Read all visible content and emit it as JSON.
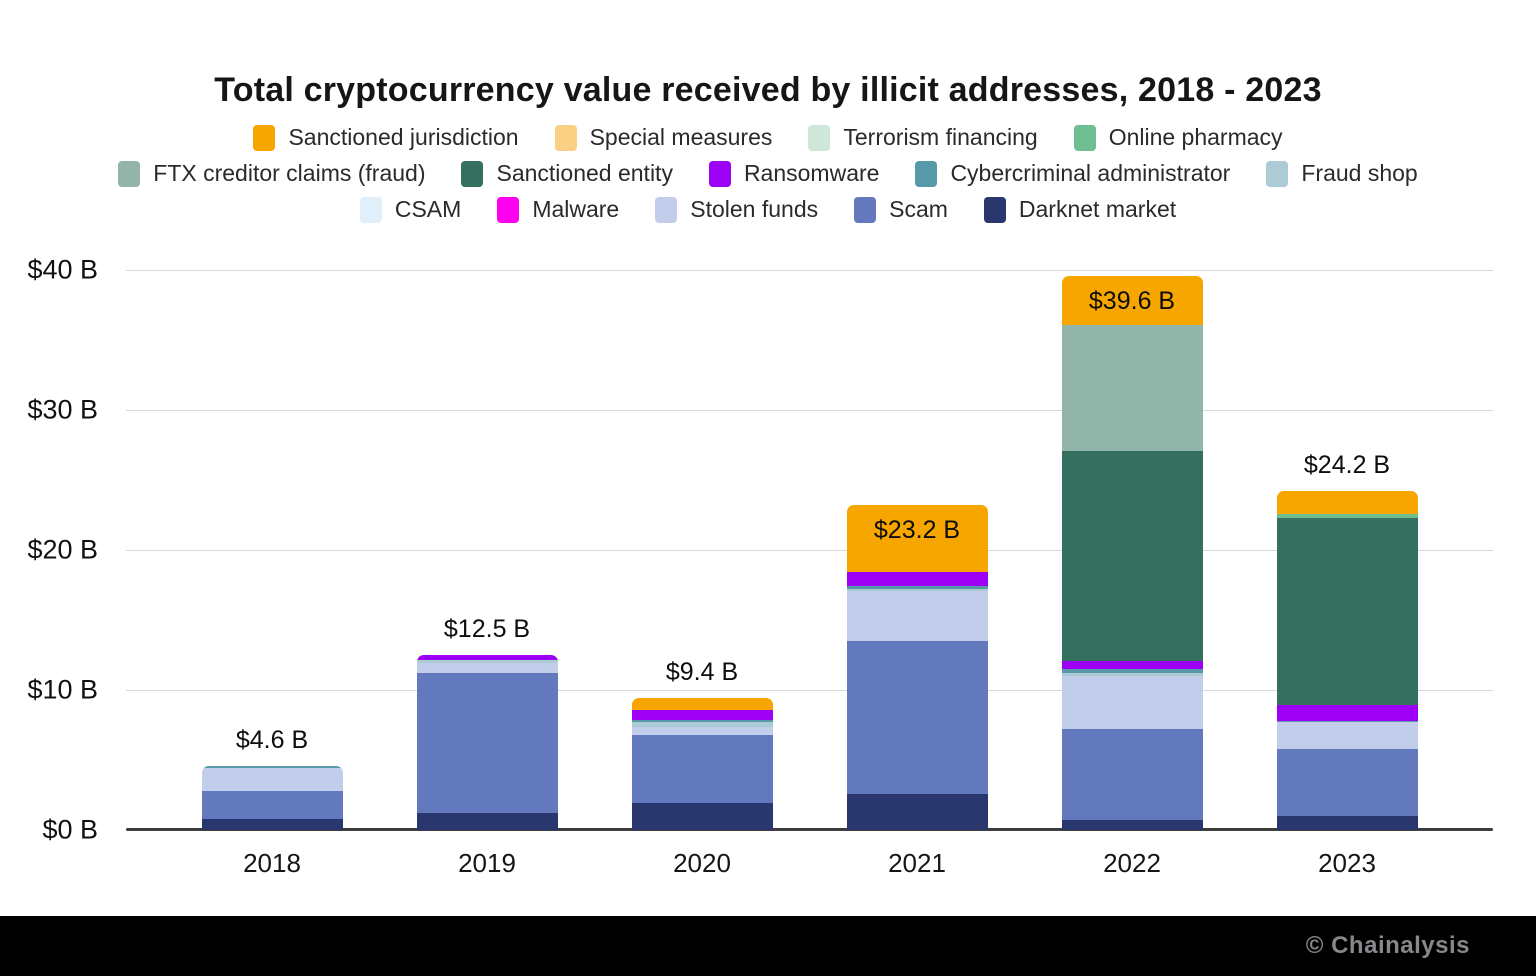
{
  "title": "Total cryptocurrency value received by illicit addresses, 2018 - 2023",
  "footer": {
    "credit": "© Chainalysis"
  },
  "colors": {
    "axis_line": "#3d3d3d",
    "gridline": "#d8d8d8",
    "footer_background": "#000000",
    "footer_text": "#87878c"
  },
  "chart_data": {
    "type": "bar",
    "stacked": true,
    "title": "Total cryptocurrency value received by illicit addresses, 2018 - 2023",
    "unit": "USD billions",
    "categories": [
      "2018",
      "2019",
      "2020",
      "2021",
      "2022",
      "2023"
    ],
    "totals": [
      4.6,
      12.5,
      9.4,
      23.2,
      39.6,
      24.2
    ],
    "total_labels": [
      "$4.6 B",
      "$12.5 B",
      "$9.4 B",
      "$23.2 B",
      "$39.6 B",
      "$24.2 B"
    ],
    "label_inside_bar": [
      false,
      false,
      false,
      true,
      true,
      false
    ],
    "ylim": [
      0,
      40
    ],
    "yticks": [
      {
        "value": 0,
        "label": "$0 B"
      },
      {
        "value": 10,
        "label": "$10 B"
      },
      {
        "value": 20,
        "label": "$20 B"
      },
      {
        "value": 30,
        "label": "$30 B"
      },
      {
        "value": 40,
        "label": "$40 B"
      }
    ],
    "grid": "horizontal",
    "legend_position": "top",
    "legend_rows": [
      [
        "Sanctioned jurisdiction",
        "Special measures",
        "Terrorism financing",
        "Online pharmacy"
      ],
      [
        "FTX creditor claims (fraud)",
        "Sanctioned entity",
        "Ransomware",
        "Cybercriminal administrator",
        "Fraud shop"
      ],
      [
        "CSAM",
        "Malware",
        "Stolen funds",
        "Scam",
        "Darknet market"
      ]
    ],
    "series": [
      {
        "name": "Darknet market",
        "color": "#2A366E",
        "values": [
          0.8,
          1.2,
          1.9,
          2.6,
          0.7,
          1.0
        ]
      },
      {
        "name": "Scam",
        "color": "#6379BD",
        "values": [
          2.0,
          10.0,
          4.9,
          10.9,
          6.5,
          4.8
        ]
      },
      {
        "name": "Stolen funds",
        "color": "#C2CDEC",
        "values": [
          1.6,
          0.75,
          0.55,
          3.6,
          3.8,
          1.9
        ]
      },
      {
        "name": "Malware",
        "color": "#FF00F0",
        "values": [
          0,
          0,
          0,
          0,
          0,
          0
        ]
      },
      {
        "name": "CSAM",
        "color": "#E0EFF9",
        "values": [
          0,
          0,
          0,
          0,
          0,
          0
        ]
      },
      {
        "name": "Fraud shop",
        "color": "#ABCBD5",
        "values": [
          0,
          0.2,
          0.35,
          0.1,
          0.2,
          0
        ]
      },
      {
        "name": "Cybercriminal administrator",
        "color": "#5799A8",
        "values": [
          0.2,
          0,
          0.15,
          0.25,
          0.3,
          0.1
        ]
      },
      {
        "name": "Ransomware",
        "color": "#9D00F5",
        "values": [
          0,
          0.35,
          0.75,
          0.95,
          0.6,
          1.1
        ]
      },
      {
        "name": "Sanctioned entity",
        "color": "#346F5F",
        "values": [
          0,
          0,
          0,
          0,
          15.0,
          13.4
        ]
      },
      {
        "name": "FTX creditor claims (fraud)",
        "color": "#92B5AA",
        "values": [
          0,
          0,
          0,
          0,
          9.0,
          0
        ]
      },
      {
        "name": "Online pharmacy",
        "color": "#6FBE92",
        "values": [
          0,
          0,
          0,
          0,
          0,
          0.25
        ]
      },
      {
        "name": "Terrorism financing",
        "color": "#CFE7D8",
        "values": [
          0,
          0,
          0,
          0,
          0,
          0
        ]
      },
      {
        "name": "Special measures",
        "color": "#FAD184",
        "values": [
          0,
          0,
          0,
          0,
          0,
          0
        ]
      },
      {
        "name": "Sanctioned jurisdiction",
        "color": "#F7A600",
        "values": [
          0,
          0,
          0.8,
          4.8,
          3.5,
          1.65
        ]
      }
    ]
  }
}
